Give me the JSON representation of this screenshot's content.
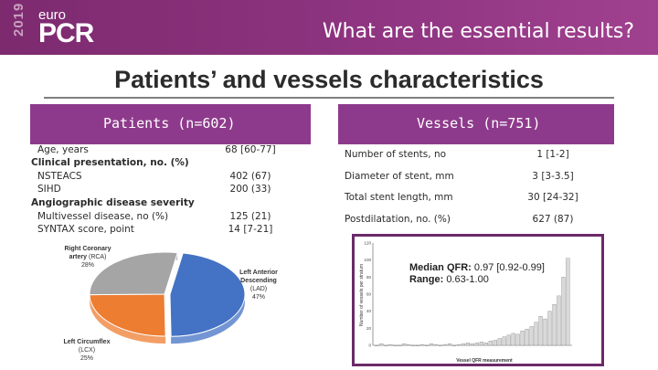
{
  "header": {
    "logo_year": "2019",
    "logo_euro": "euro",
    "logo_pcr": "PCR",
    "title": "What are the essential results?"
  },
  "page_title": "Patients’ and vessels characteristics",
  "patients": {
    "heading": "Patients (n=602)",
    "rows": [
      {
        "label": "Age, years",
        "value": "68 [60-77]"
      },
      {
        "label": "Clinical presentation, no. (%)",
        "value": ""
      },
      {
        "label": "NSTEACS",
        "value": "402 (67)"
      },
      {
        "label": "SIHD",
        "value": "200 (33)"
      },
      {
        "label": "Angiographic disease severity",
        "value": ""
      },
      {
        "label": "Multivessel disease, no (%)",
        "value": "125 (21)"
      },
      {
        "label": "SYNTAX score, point",
        "value": "14 [7-21]"
      }
    ]
  },
  "vessels": {
    "heading": "Vessels (n=751)",
    "rows": [
      {
        "label": "Number of stents, no",
        "value": "1 [1-2]"
      },
      {
        "label": "Diameter of stent, mm",
        "value": "3 [3-3.5]"
      },
      {
        "label": "Total stent length, mm",
        "value": "30 [24-32]"
      },
      {
        "label": "Postdilatation, no. (%)",
        "value": "627 (87)"
      }
    ]
  },
  "pie": {
    "slices": [
      {
        "name_line1": "Left Anterior",
        "name_line2": "Descending",
        "abbr": "(LAD)",
        "pct_label": "47%",
        "pct": 47,
        "color": "#4472c4"
      },
      {
        "name_line1": "Left Circumflex",
        "name_line2": "",
        "abbr": "(LCX)",
        "pct_label": "25%",
        "pct": 25,
        "color": "#ed7d31"
      },
      {
        "name_line1": "Right Coronary",
        "name_line2": "artery",
        "abbr": "(RCA)",
        "pct_label": "28%",
        "pct": 28,
        "color": "#a5a5a5"
      }
    ]
  },
  "qfr": {
    "median_label": "Median QFR:",
    "median_value": "0.97 [0.92-0.99]",
    "range_label": "Range:",
    "range_value": "0.63-1.00",
    "ylabel": "Number of vessels per stratum",
    "xlabel": "Vessel QFR measurement"
  },
  "chart_data": {
    "type": "bar",
    "ylim": [
      0,
      120
    ],
    "yticks": [
      "0",
      "20",
      "40",
      "60",
      "80",
      "100",
      "120"
    ],
    "values": [
      0,
      2,
      0,
      1,
      0,
      0,
      2,
      1,
      0,
      0,
      1,
      0,
      2,
      1,
      0,
      1,
      2,
      0,
      1,
      2,
      3,
      2,
      3,
      4,
      3,
      5,
      6,
      8,
      10,
      12,
      14,
      13,
      17,
      19,
      22,
      27,
      34,
      31,
      40,
      48,
      58,
      80,
      102
    ],
    "bar_color": "#d9d9d9",
    "title": "",
    "xlabel": "Vessel QFR measurement",
    "ylabel": "Number of vessels per stratum"
  }
}
